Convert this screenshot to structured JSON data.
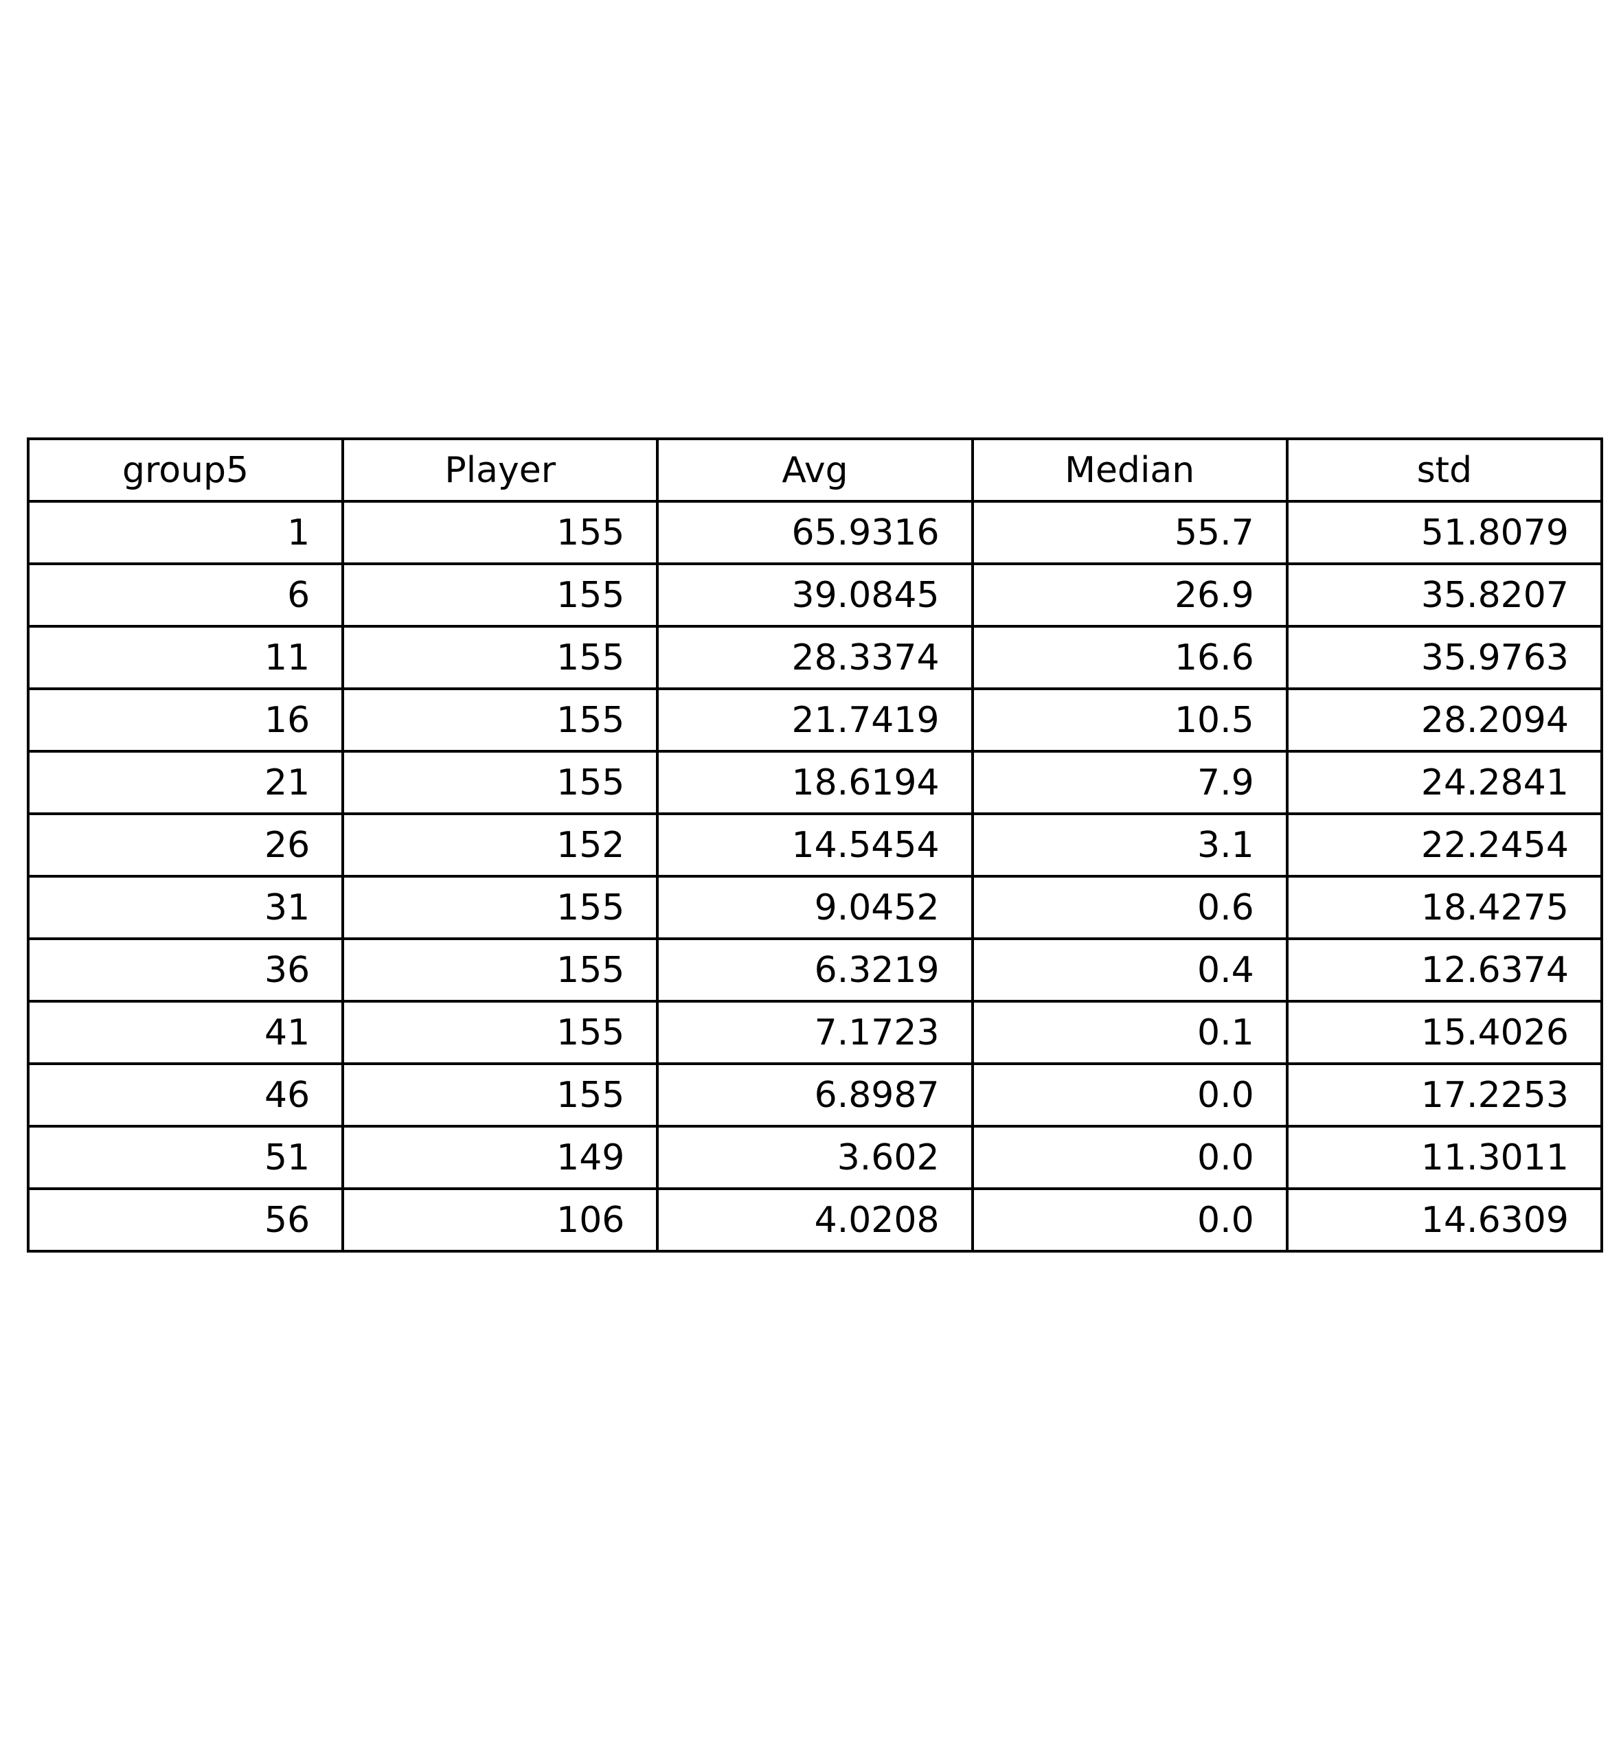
{
  "chart_data": {
    "type": "table",
    "columns": [
      "group5",
      "Player",
      "Avg",
      "Median",
      "std"
    ],
    "rows": [
      [
        "1",
        "155",
        "65.9316",
        "55.7",
        "51.8079"
      ],
      [
        "6",
        "155",
        "39.0845",
        "26.9",
        "35.8207"
      ],
      [
        "11",
        "155",
        "28.3374",
        "16.6",
        "35.9763"
      ],
      [
        "16",
        "155",
        "21.7419",
        "10.5",
        "28.2094"
      ],
      [
        "21",
        "155",
        "18.6194",
        "7.9",
        "24.2841"
      ],
      [
        "26",
        "152",
        "14.5454",
        "3.1",
        "22.2454"
      ],
      [
        "31",
        "155",
        "9.0452",
        "0.6",
        "18.4275"
      ],
      [
        "36",
        "155",
        "6.3219",
        "0.4",
        "12.6374"
      ],
      [
        "41",
        "155",
        "7.1723",
        "0.1",
        "15.4026"
      ],
      [
        "46",
        "155",
        "6.8987",
        "0.0",
        "17.2253"
      ],
      [
        "51",
        "149",
        "3.602",
        "0.0",
        "11.3011"
      ],
      [
        "56",
        "106",
        "4.0208",
        "0.0",
        "14.6309"
      ]
    ],
    "border_color": "#000000",
    "background": "#ffffff"
  }
}
